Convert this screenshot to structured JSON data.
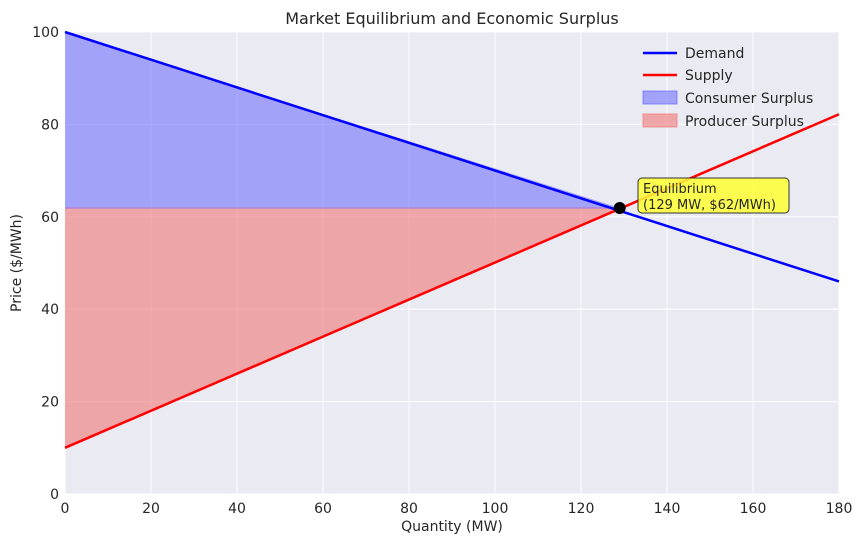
{
  "chart_data": {
    "type": "line",
    "title": "Market Equilibrium and Economic Surplus",
    "xlabel": "Quantity (MW)",
    "ylabel": "Price ($/MWh)",
    "xlim": [
      0,
      180
    ],
    "ylim": [
      0,
      100
    ],
    "xticks": [
      0,
      20,
      40,
      60,
      80,
      100,
      120,
      140,
      160,
      180
    ],
    "yticks": [
      0,
      20,
      40,
      60,
      80,
      100
    ],
    "grid": true,
    "legend_position": "top-right",
    "series": [
      {
        "name": "Demand",
        "kind": "line",
        "color": "#0000ff",
        "x": [
          0,
          180
        ],
        "y": [
          100,
          46
        ]
      },
      {
        "name": "Supply",
        "kind": "line",
        "color": "#ff0000",
        "x": [
          0,
          180
        ],
        "y": [
          10,
          82.2
        ]
      }
    ],
    "areas": [
      {
        "name": "Consumer Surplus",
        "color": "#6666ff",
        "x": [
          0,
          129
        ],
        "upper": [
          100,
          61.9
        ],
        "lower": [
          61.9,
          61.9
        ]
      },
      {
        "name": "Producer Surplus",
        "color": "#f08080",
        "x": [
          0,
          129
        ],
        "upper": [
          61.9,
          61.9
        ],
        "lower": [
          10,
          61.9
        ]
      }
    ],
    "equilibrium": {
      "x": 129,
      "y": 61.9
    },
    "annotation": {
      "line1": "Equilibrium",
      "line2": "(129 MW, $62/MWh)",
      "box_color": "#ffff33"
    }
  }
}
